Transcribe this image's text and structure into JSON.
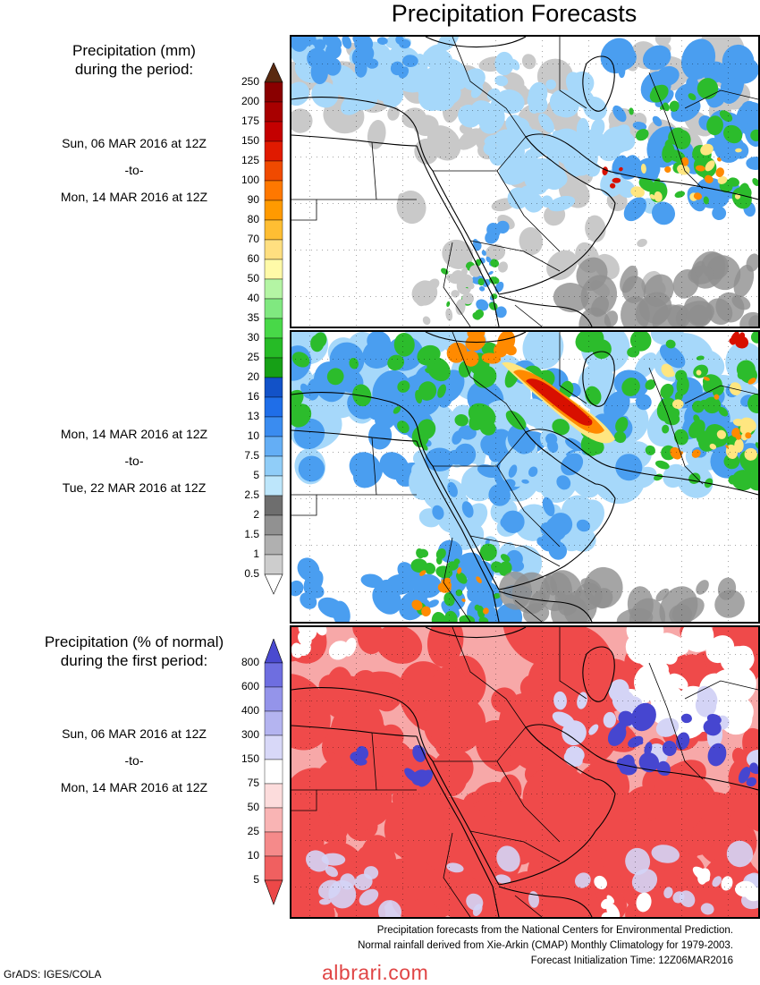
{
  "title": "Precipitation Forecasts",
  "amount_section": {
    "heading_line1": "Precipitation (mm)",
    "heading_line2": "during the period:",
    "period1": {
      "start": "Sun, 06 MAR 2016 at 12Z",
      "sep": "-to-",
      "end": "Mon, 14 MAR 2016 at 12Z"
    },
    "period2": {
      "start": "Mon, 14 MAR 2016 at 12Z",
      "sep": "-to-",
      "end": "Tue, 22 MAR 2016 at 12Z"
    },
    "legend": {
      "labels": [
        "250",
        "200",
        "175",
        "150",
        "125",
        "100",
        "90",
        "80",
        "70",
        "60",
        "50",
        "40",
        "35",
        "30",
        "25",
        "20",
        "16",
        "13",
        "10",
        "7.5",
        "5",
        "2.5",
        "2",
        "1.5",
        "1",
        "0.5"
      ],
      "colors": [
        "#5a2a10",
        "#8a0000",
        "#a80000",
        "#c40000",
        "#e01a00",
        "#f04a00",
        "#ff7800",
        "#ff9a00",
        "#ffbe33",
        "#ffdf80",
        "#fffaa8",
        "#b4f5a4",
        "#80e880",
        "#48d848",
        "#26bb26",
        "#16a016",
        "#1252c8",
        "#1f6ee8",
        "#3a8cf0",
        "#64aef5",
        "#90cdf8",
        "#bde6fb",
        "#6e6e6e",
        "#919191",
        "#b0b0b0",
        "#cdcdcd",
        "#ffffff"
      ]
    }
  },
  "percent_section": {
    "heading_line1": "Precipitation (% of normal)",
    "heading_line2": "during the first period:",
    "period": {
      "start": "Sun, 06 MAR 2016 at 12Z",
      "sep": "-to-",
      "end": "Mon, 14 MAR 2016 at 12Z"
    },
    "legend": {
      "labels": [
        "800",
        "600",
        "400",
        "300",
        "150",
        "75",
        "50",
        "25",
        "10",
        "5"
      ],
      "colors": [
        "#4a4ad0",
        "#6e6ee0",
        "#9494ea",
        "#b4b4f0",
        "#d8d8f8",
        "#ffffff",
        "#fcdcdc",
        "#f9b4b4",
        "#f58a8a",
        "#f06060",
        "#ec4848"
      ]
    }
  },
  "map_colors": {
    "land": "#ffffff",
    "coast": "#000000",
    "gray_light": "#c9c9c9",
    "gray_dark": "#8e8e8e",
    "blue_light": "#a6d8fa",
    "blue_mid": "#4a9ef0",
    "blue_dark": "#1e5fd0",
    "green": "#2cbc2c",
    "green_light": "#8ae88a",
    "yellow": "#ffe680",
    "orange": "#ff8a00",
    "red": "#d81000",
    "pct_red": "#ef4a4a",
    "pct_pink": "#f7a8a8",
    "pct_lavender": "#d4d4f6",
    "pct_blue": "#4646d0"
  },
  "footnote": {
    "line1": "Precipitation forecasts from the National Centers for Environmental Prediction.",
    "line2": "Normal rainfall derived from Xie-Arkin (CMAP) Monthly Climatology for 1979-2003.",
    "line3": "Forecast Initialization Time: 12Z06MAR2016"
  },
  "credit": "GrADS: IGES/COLA",
  "watermark": "albrari.com"
}
